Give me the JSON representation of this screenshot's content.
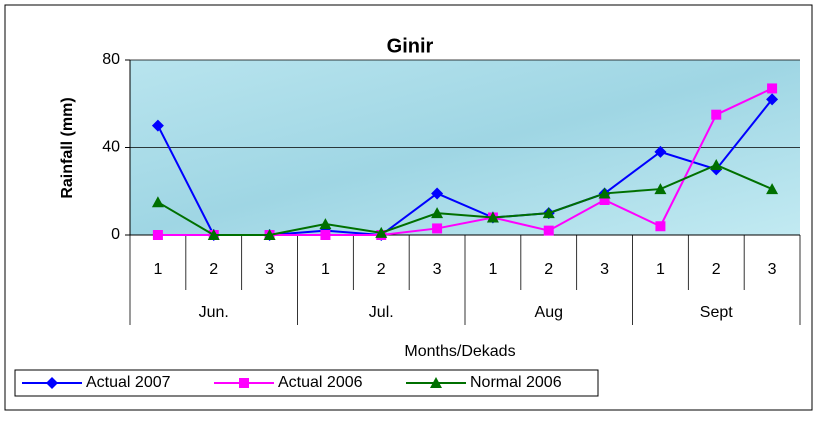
{
  "chart_data": {
    "type": "line",
    "title": "Ginir",
    "y_label": "Rainfall (mm)",
    "x_label": "Months/Dekads",
    "categories": [
      "1",
      "2",
      "3",
      "1",
      "2",
      "3",
      "1",
      "2",
      "3",
      "1",
      "2",
      "3"
    ],
    "category_groups": [
      "Jun.",
      "Jul.",
      "Aug",
      "Sept"
    ],
    "series": [
      {
        "name": "Actual 2007",
        "color": "#0000ff",
        "marker": "diamond",
        "values": [
          50,
          0,
          0,
          2,
          0,
          19,
          8,
          10,
          19,
          38,
          30,
          62
        ]
      },
      {
        "name": "Actual 2006",
        "color": "#ff00ff",
        "marker": "square",
        "values": [
          0,
          0,
          0,
          0,
          0,
          3,
          8,
          2,
          16,
          4,
          55,
          67
        ]
      },
      {
        "name": "Normal 2006",
        "color": "#007000",
        "marker": "triangle",
        "values": [
          15,
          0,
          0,
          5,
          1,
          10,
          8,
          10,
          19,
          21,
          32,
          21
        ]
      }
    ],
    "ylim": [
      0,
      80
    ],
    "yticks": [
      0,
      40,
      80
    ],
    "grid": true,
    "legend": "bottom"
  }
}
